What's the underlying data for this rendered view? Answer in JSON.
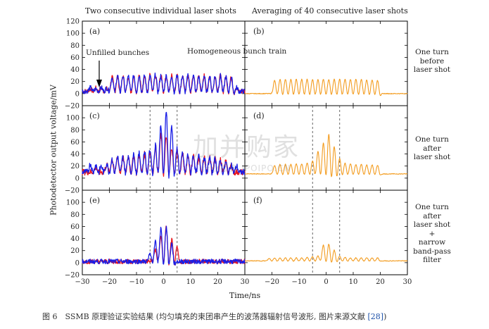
{
  "headers": {
    "left": "Two consecutive individual laser shots",
    "right": "Averaging of 40 consecutive laser shots"
  },
  "axes": {
    "ylabel": "Photodetector output voltage/mV",
    "xlabel": "Time/ns",
    "xlim": [
      -30,
      30
    ],
    "xticks": [
      "−30",
      "−20",
      "−10",
      "0",
      "10",
      "20",
      "30"
    ],
    "ylim": [
      -20,
      120
    ],
    "yticks": [
      "−20",
      "0",
      "20",
      "40",
      "60",
      "80",
      "100",
      "120"
    ]
  },
  "row_labels": [
    [
      "One turn",
      "before",
      "laser shot"
    ],
    [
      "One turn",
      "after",
      "laser shot"
    ],
    [
      "One turn",
      "after",
      "laser shot",
      "+",
      "narrow",
      "band-pass",
      "filter"
    ]
  ],
  "annotations": {
    "unfilled": "Unfilled bunches",
    "homogeneous": "Homogeneous bunch train"
  },
  "panel_tags": [
    "(a)",
    "(b)",
    "(c)",
    "(d)",
    "(e)",
    "(f)"
  ],
  "colors": {
    "red": "#e8141c",
    "blue": "#1a1ee6",
    "orange": "#f39c1f",
    "dashed": "#555555"
  },
  "chart_data": {
    "type": "line",
    "dashed_lines_x": [
      -5,
      5
    ],
    "panels": [
      {
        "tag": "(a)",
        "series": [
          {
            "color": "red",
            "peaks": [
              [
                -27,
                4
              ],
              [
                -25,
                5
              ],
              [
                -23,
                5
              ],
              [
                -21,
                4
              ],
              [
                -19,
                24
              ],
              [
                -17,
                25
              ],
              [
                -15,
                25
              ],
              [
                -13,
                25
              ],
              [
                -11,
                26
              ],
              [
                -9,
                26
              ],
              [
                -7,
                27
              ],
              [
                -5,
                27
              ],
              [
                -3,
                26
              ],
              [
                -1,
                27
              ],
              [
                1,
                26
              ],
              [
                3,
                26
              ],
              [
                5,
                26
              ],
              [
                7,
                26
              ],
              [
                9,
                27
              ],
              [
                11,
                26
              ],
              [
                13,
                26
              ],
              [
                15,
                26
              ],
              [
                17,
                26
              ],
              [
                19,
                25
              ],
              [
                21,
                26
              ],
              [
                23,
                25
              ],
              [
                25,
                24
              ],
              [
                27,
                4
              ]
            ],
            "baseline": 4
          },
          {
            "color": "blue",
            "peaks": [
              [
                -27,
                6
              ],
              [
                -25,
                4
              ],
              [
                -23,
                6
              ],
              [
                -21,
                5
              ],
              [
                -19,
                23
              ],
              [
                -17,
                27
              ],
              [
                -15,
                26
              ],
              [
                -13,
                25
              ],
              [
                -11,
                26
              ],
              [
                -9,
                26
              ],
              [
                -7,
                26
              ],
              [
                -5,
                25
              ],
              [
                -3,
                28
              ],
              [
                -1,
                26
              ],
              [
                1,
                26
              ],
              [
                3,
                26
              ],
              [
                5,
                27
              ],
              [
                7,
                26
              ],
              [
                9,
                26
              ],
              [
                11,
                26
              ],
              [
                13,
                24
              ],
              [
                15,
                26
              ],
              [
                17,
                25
              ],
              [
                19,
                25
              ],
              [
                21,
                26
              ],
              [
                23,
                24
              ],
              [
                25,
                23
              ],
              [
                27,
                6
              ]
            ],
            "baseline": 4
          }
        ]
      },
      {
        "tag": "(b)",
        "series": [
          {
            "color": "orange",
            "peaks": [
              [
                -19,
                22
              ],
              [
                -17,
                24
              ],
              [
                -15,
                24
              ],
              [
                -13,
                24
              ],
              [
                -11,
                24
              ],
              [
                -9,
                24
              ],
              [
                -7,
                24
              ],
              [
                -5,
                24
              ],
              [
                -3,
                24
              ],
              [
                -1,
                24
              ],
              [
                1,
                24
              ],
              [
                3,
                24
              ],
              [
                5,
                24
              ],
              [
                7,
                24
              ],
              [
                9,
                24
              ],
              [
                11,
                24
              ],
              [
                13,
                24
              ],
              [
                15,
                23
              ],
              [
                17,
                23
              ],
              [
                19,
                22
              ]
            ],
            "baseline": 0
          }
        ]
      },
      {
        "tag": "(c)",
        "series": [
          {
            "color": "red",
            "peaks": [
              [
                -25,
                8
              ],
              [
                -21,
                12
              ],
              [
                -19,
                22
              ],
              [
                -17,
                25
              ],
              [
                -15,
                24
              ],
              [
                -13,
                27
              ],
              [
                -11,
                28
              ],
              [
                -9,
                28
              ],
              [
                -7,
                30
              ],
              [
                -5,
                36
              ],
              [
                -3,
                43
              ],
              [
                -1,
                62
              ],
              [
                1,
                60
              ],
              [
                3,
                42
              ],
              [
                5,
                36
              ],
              [
                7,
                30
              ],
              [
                9,
                28
              ],
              [
                11,
                28
              ],
              [
                13,
                26
              ],
              [
                15,
                25
              ],
              [
                17,
                24
              ],
              [
                19,
                22
              ],
              [
                21,
                20
              ],
              [
                23,
                18
              ],
              [
                25,
                12
              ]
            ],
            "baseline": 10
          },
          {
            "color": "blue",
            "peaks": [
              [
                -27,
                14
              ],
              [
                -25,
                12
              ],
              [
                -23,
                10
              ],
              [
                -21,
                14
              ],
              [
                -19,
                22
              ],
              [
                -17,
                26
              ],
              [
                -15,
                25
              ],
              [
                -13,
                28
              ],
              [
                -11,
                29
              ],
              [
                -9,
                31
              ],
              [
                -7,
                35
              ],
              [
                -5,
                38
              ],
              [
                -3,
                45
              ],
              [
                -1,
                80
              ],
              [
                1,
                104
              ],
              [
                3,
                78
              ],
              [
                5,
                40
              ],
              [
                7,
                32
              ],
              [
                9,
                29
              ],
              [
                11,
                28
              ],
              [
                13,
                27
              ],
              [
                15,
                25
              ],
              [
                17,
                24
              ],
              [
                19,
                22
              ],
              [
                21,
                19
              ],
              [
                23,
                16
              ],
              [
                25,
                13
              ],
              [
                27,
                10
              ]
            ],
            "baseline": 10
          }
        ]
      },
      {
        "tag": "(d)",
        "series": [
          {
            "color": "orange",
            "peaks": [
              [
                -19,
                14
              ],
              [
                -17,
                16
              ],
              [
                -15,
                16
              ],
              [
                -13,
                16
              ],
              [
                -11,
                17
              ],
              [
                -9,
                17
              ],
              [
                -7,
                18
              ],
              [
                -5,
                22
              ],
              [
                -3,
                38
              ],
              [
                -1,
                52
              ],
              [
                1,
                66
              ],
              [
                3,
                46
              ],
              [
                5,
                26
              ],
              [
                7,
                18
              ],
              [
                9,
                17
              ],
              [
                11,
                16
              ],
              [
                13,
                16
              ],
              [
                15,
                15
              ],
              [
                17,
                15
              ],
              [
                19,
                14
              ]
            ],
            "baseline": 7
          }
        ]
      },
      {
        "tag": "(e)",
        "series": [
          {
            "color": "red",
            "peaks": [
              [
                -3,
                20
              ],
              [
                -1,
                44
              ],
              [
                1,
                57
              ],
              [
                3,
                36
              ],
              [
                5,
                22
              ]
            ],
            "baseline": 2
          },
          {
            "color": "blue",
            "peaks": [
              [
                -5,
                12
              ],
              [
                -3,
                32
              ],
              [
                -1,
                55
              ],
              [
                1,
                58
              ],
              [
                3,
                30
              ]
            ],
            "baseline": 2
          }
        ]
      },
      {
        "tag": "(f)",
        "series": [
          {
            "color": "orange",
            "peaks": [
              [
                -21,
                4
              ],
              [
                -19,
                5
              ],
              [
                -17,
                5
              ],
              [
                -15,
                5
              ],
              [
                -13,
                5
              ],
              [
                -11,
                5
              ],
              [
                -9,
                5
              ],
              [
                -7,
                6
              ],
              [
                -5,
                7
              ],
              [
                -3,
                8
              ],
              [
                -1,
                27
              ],
              [
                1,
                28
              ],
              [
                3,
                18
              ],
              [
                5,
                8
              ],
              [
                7,
                6
              ],
              [
                9,
                5
              ],
              [
                11,
                5
              ],
              [
                13,
                5
              ],
              [
                15,
                5
              ],
              [
                17,
                5
              ],
              [
                19,
                5
              ]
            ],
            "baseline": 3
          }
        ]
      }
    ]
  },
  "caption": {
    "text": "图 6　SSMB 原理验证实验结果 (均匀填充的束团串产生的波荡器辐射信号波形, 图片来源文献 ",
    "ref": "[28]",
    "close": ")"
  },
  "watermark": {
    "main": "加并购家",
    "sub": "行业报告 IPOIPO.CN"
  }
}
